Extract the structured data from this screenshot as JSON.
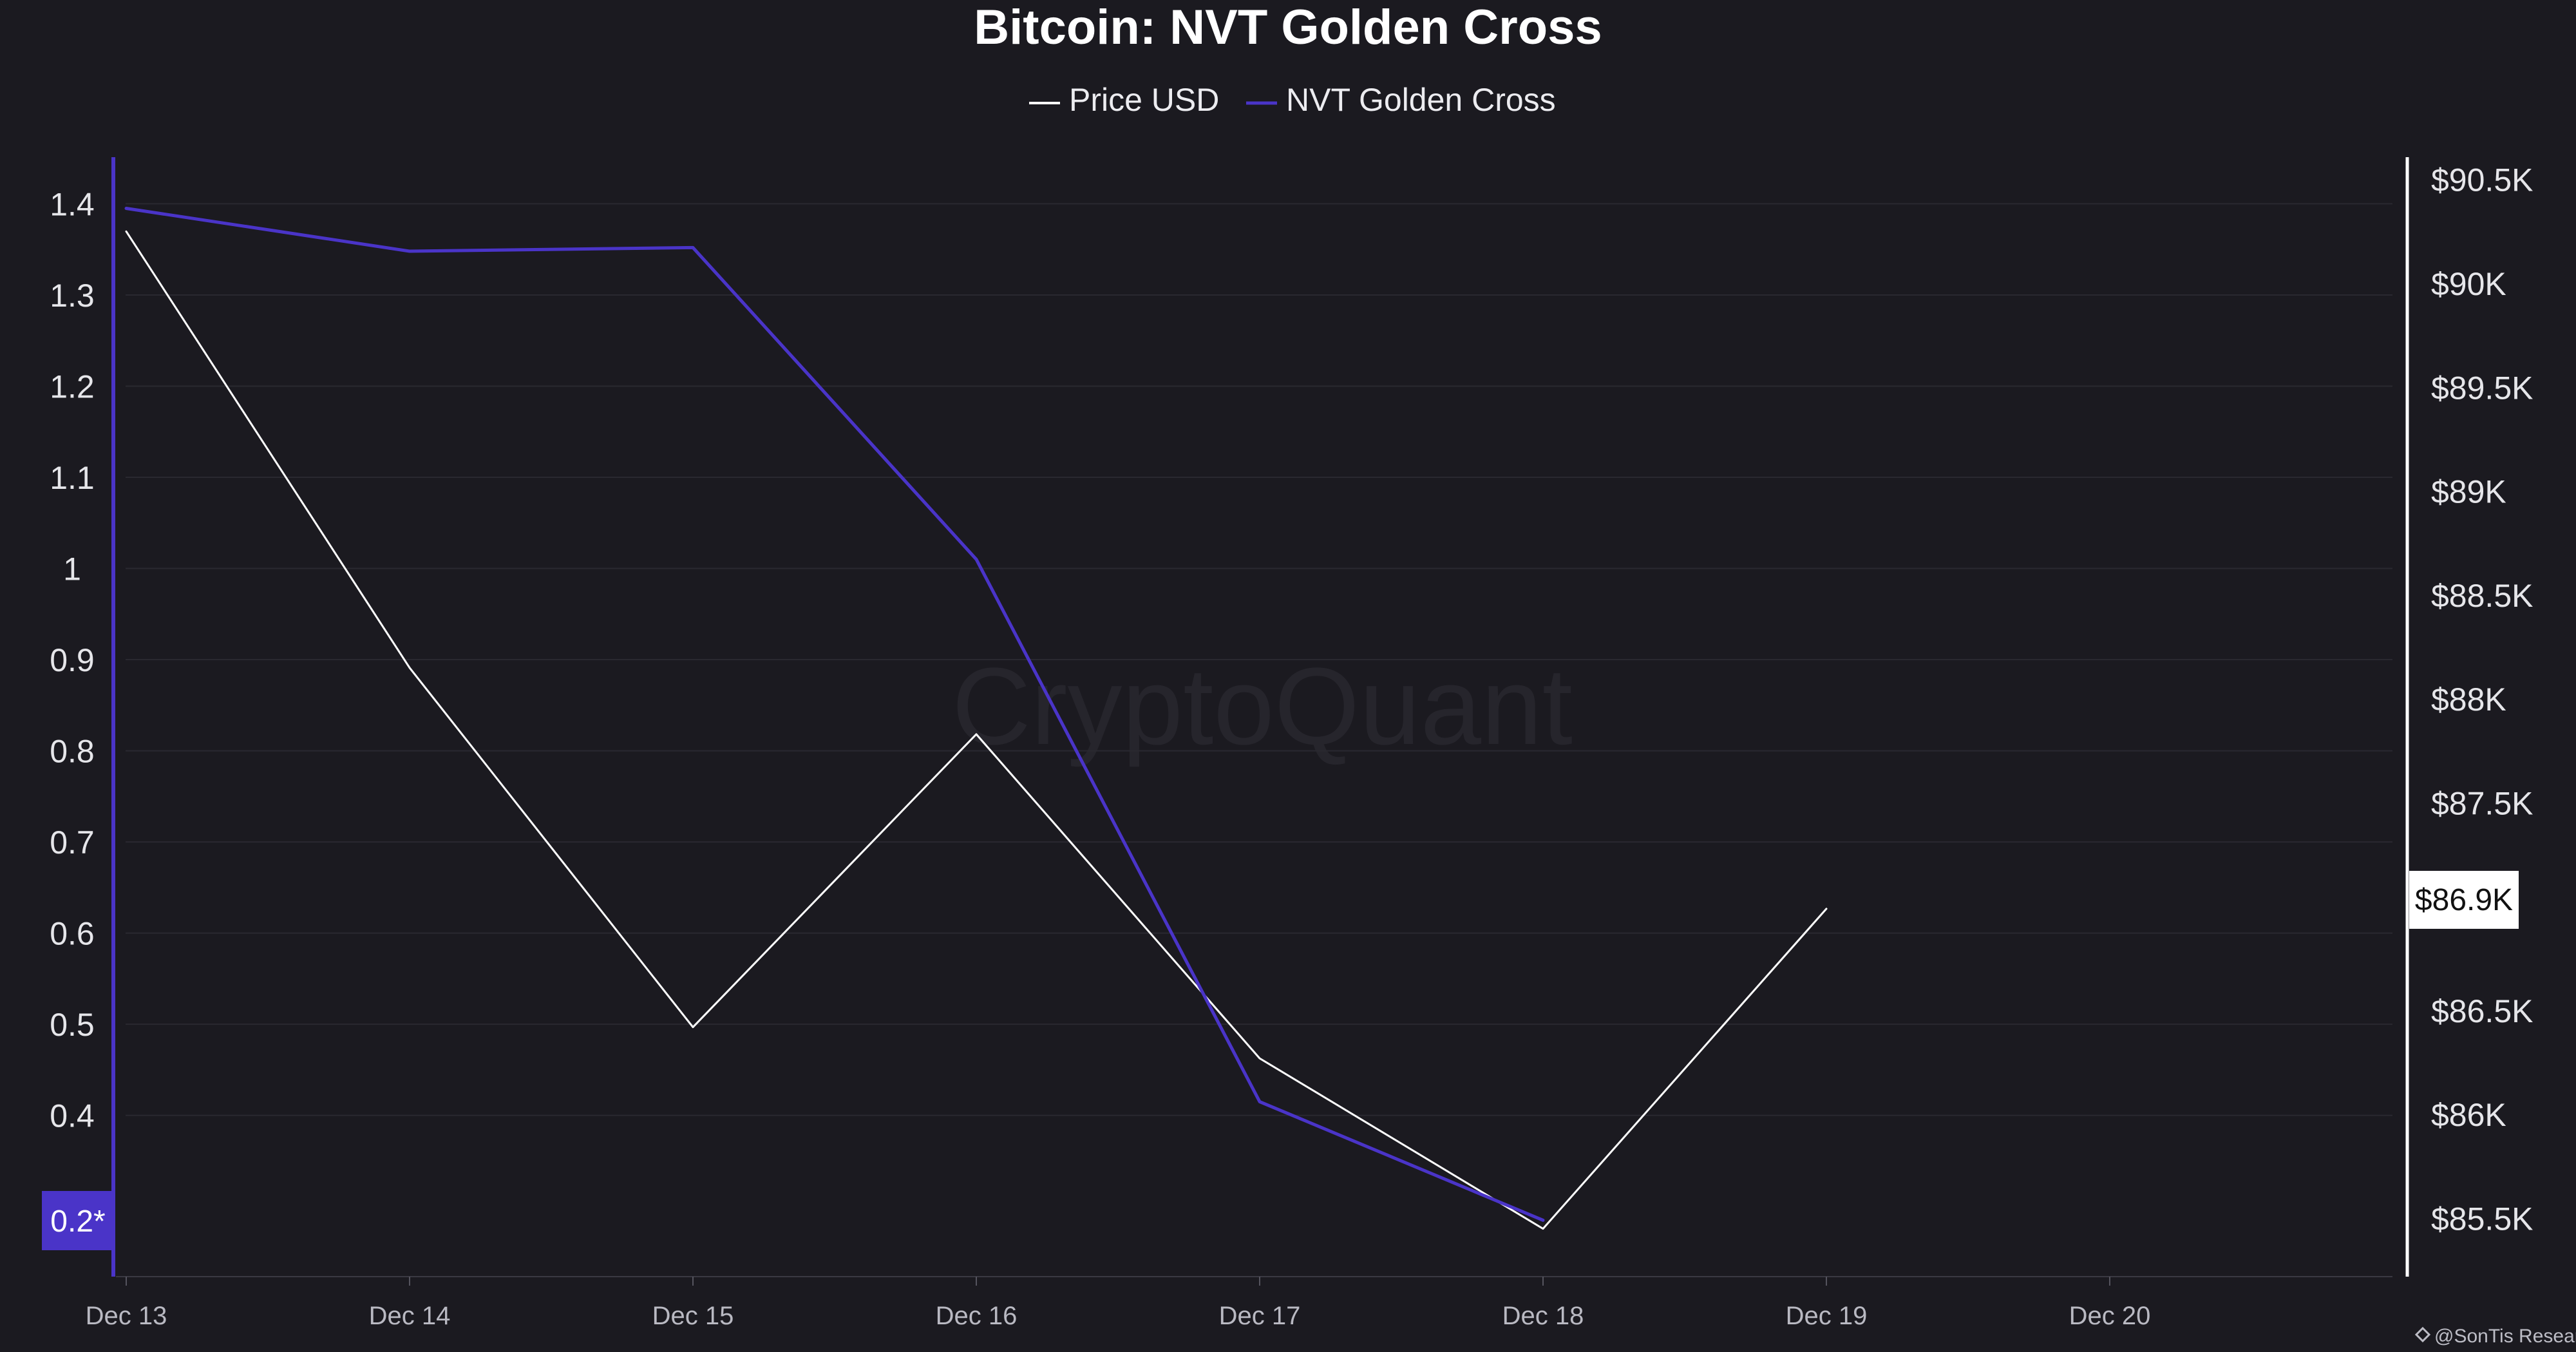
{
  "chart_data": {
    "type": "line",
    "title": "Bitcoin: NVT Golden Cross",
    "x": [
      "Dec 13",
      "Dec 14",
      "Dec 15",
      "Dec 16",
      "Dec 17",
      "Dec 18",
      "Dec 19",
      "Dec 20"
    ],
    "series": [
      {
        "name": "Price USD",
        "axis": "right",
        "color": "#ffffff",
        "x": [
          "Dec 13",
          "Dec 14",
          "Dec 15",
          "Dec 16",
          "Dec 17",
          "Dec 18",
          "Dec 19"
        ],
        "values": [
          90250,
          88150,
          86420,
          87830,
          86270,
          85450,
          86990
        ]
      },
      {
        "name": "NVT Golden Cross",
        "axis": "left",
        "color": "#4a34c8",
        "x": [
          "Dec 13",
          "Dec 14",
          "Dec 15",
          "Dec 16",
          "Dec 17",
          "Dec 18"
        ],
        "values": [
          1.395,
          1.348,
          1.352,
          1.01,
          0.415,
          0.285
        ]
      }
    ],
    "y_left": {
      "ticks": [
        "1.4",
        "1.3",
        "1.2",
        "1.1",
        "1",
        "0.9",
        "0.8",
        "0.7",
        "0.6",
        "0.5",
        "0.4"
      ],
      "tick_values": [
        1.4,
        1.3,
        1.2,
        1.1,
        1.0,
        0.9,
        0.8,
        0.7,
        0.6,
        0.5,
        0.4
      ],
      "ylim": [
        0.221,
        1.454
      ]
    },
    "y_right": {
      "ticks": [
        "$90.5K",
        "$90K",
        "$89.5K",
        "$89K",
        "$88.5K",
        "$88K",
        "$87.5K",
        "$86.5K",
        "$86K",
        "$85.5K"
      ],
      "tick_values": [
        90500,
        90000,
        89500,
        89000,
        88500,
        88000,
        87500,
        86500,
        86000,
        85500
      ],
      "ylim": [
        85210,
        90620
      ]
    },
    "current_labels": {
      "left": "0.2*",
      "right": "$86.9K"
    },
    "legend": "top-center",
    "grid": true
  },
  "watermark": "CryptoQuant",
  "credit": "@SonTis Research",
  "colors": {
    "background": "#1b1a20",
    "grid": "#2a2930",
    "price_line": "#ffffff",
    "nvt_line": "#4a34c8",
    "left_axis": "#4a34c8",
    "right_axis": "#ffffff"
  }
}
